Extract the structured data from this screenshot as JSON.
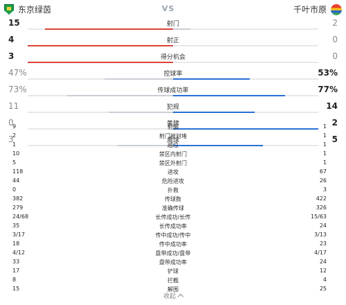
{
  "header": {
    "home_name": "东京绿茵",
    "away_name": "千叶市原",
    "vs": "VS"
  },
  "bar_stats": [
    {
      "label": "射门",
      "home": "15",
      "away": "2",
      "home_frac": 0.88,
      "away_frac": 0.12,
      "leader": "home"
    },
    {
      "label": "射正",
      "home": "4",
      "away": "0",
      "home_frac": 1.0,
      "away_frac": 0.0,
      "leader": "home"
    },
    {
      "label": "得分机会",
      "home": "3",
      "away": "0",
      "home_frac": 1.0,
      "away_frac": 0.0,
      "leader": "home"
    },
    {
      "label": "控球率",
      "home": "47%",
      "away": "53%",
      "home_frac": 0.47,
      "away_frac": 0.53,
      "leader": "away"
    },
    {
      "label": "传球成功率",
      "home": "73%",
      "away": "77%",
      "home_frac": 0.73,
      "away_frac": 0.77,
      "leader": "away"
    },
    {
      "label": "犯规",
      "home": "11",
      "away": "14",
      "home_frac": 0.44,
      "away_frac": 0.56,
      "leader": "away"
    },
    {
      "label": "黄牌",
      "home": "0",
      "away": "2",
      "home_frac": 0.0,
      "away_frac": 1.0,
      "leader": "away"
    },
    {
      "label": "角球",
      "home": "3",
      "away": "5",
      "home_frac": 0.38,
      "away_frac": 0.62,
      "leader": "away"
    }
  ],
  "table_stats": [
    {
      "label": "射偏",
      "home": "9",
      "away": "1"
    },
    {
      "label": "射门被封堵",
      "home": "2",
      "away": "1"
    },
    {
      "label": "越位",
      "home": "1",
      "away": "1"
    },
    {
      "label": "禁区内射门",
      "home": "10",
      "away": "1"
    },
    {
      "label": "禁区外射门",
      "home": "5",
      "away": "1"
    },
    {
      "label": "进攻",
      "home": "118",
      "away": "67"
    },
    {
      "label": "危险进攻",
      "home": "44",
      "away": "26"
    },
    {
      "label": "扑救",
      "home": "0",
      "away": "3"
    },
    {
      "label": "传球数",
      "home": "382",
      "away": "422"
    },
    {
      "label": "准确传球",
      "home": "279",
      "away": "326"
    },
    {
      "label": "长传成功/长传",
      "home": "24/68",
      "away": "15/63"
    },
    {
      "label": "长传成功率",
      "home": "35",
      "away": "24"
    },
    {
      "label": "传中成功/传中",
      "home": "3/17",
      "away": "3/13"
    },
    {
      "label": "传中成功率",
      "home": "18",
      "away": "23"
    },
    {
      "label": "盘带成功/盘带",
      "home": "4/12",
      "away": "4/17"
    },
    {
      "label": "盘带成功率",
      "home": "33",
      "away": "24"
    },
    {
      "label": "铲球",
      "home": "17",
      "away": "12"
    },
    {
      "label": "拦截",
      "home": "8",
      "away": "4"
    },
    {
      "label": "解围",
      "home": "15",
      "away": "25"
    }
  ],
  "footer": {
    "collapse_label": "收起"
  },
  "colors": {
    "home_bar": "#d9433a",
    "away_bar": "#2a6fd6",
    "track": "#e6e8eb"
  }
}
